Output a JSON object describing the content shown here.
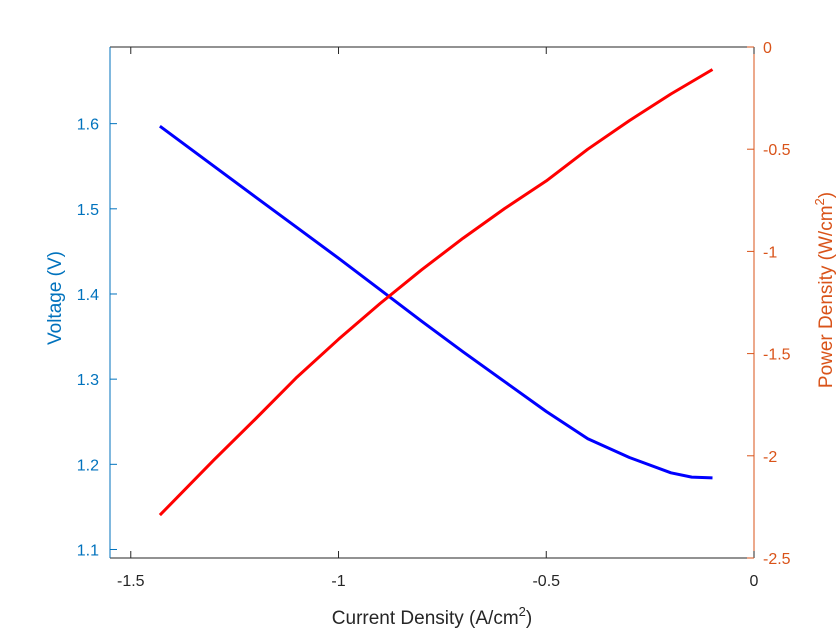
{
  "chart_data": {
    "type": "line",
    "xlabel": "Current Density (A/cm",
    "xlabel_sup": "2",
    "xlabel_close": ")",
    "ylabel_left": "Voltage (V)",
    "ylabel_right": "Power Density (W/cm",
    "ylabel_right_sup": "2",
    "ylabel_right_close": ")",
    "xlim": [
      -1.55,
      0
    ],
    "ylim_left": [
      1.09,
      1.69
    ],
    "ylim_right": [
      -2.5,
      0
    ],
    "x_ticks": [
      {
        "value": -1.5,
        "label": "-1.5"
      },
      {
        "value": -1,
        "label": "-1"
      },
      {
        "value": -0.5,
        "label": "-0.5"
      },
      {
        "value": 0,
        "label": "0"
      }
    ],
    "y_left_ticks": [
      {
        "value": 1.1,
        "label": "1.1"
      },
      {
        "value": 1.2,
        "label": "1.2"
      },
      {
        "value": 1.3,
        "label": "1.3"
      },
      {
        "value": 1.4,
        "label": "1.4"
      },
      {
        "value": 1.5,
        "label": "1.5"
      },
      {
        "value": 1.6,
        "label": "1.6"
      }
    ],
    "y_right_ticks": [
      {
        "value": 0,
        "label": "0"
      },
      {
        "value": -0.5,
        "label": "-0.5"
      },
      {
        "value": -1,
        "label": "-1"
      },
      {
        "value": -1.5,
        "label": "-1.5"
      },
      {
        "value": -2,
        "label": "-2"
      },
      {
        "value": -2.5,
        "label": "-2.5"
      }
    ],
    "grid": false,
    "series": [
      {
        "axis": "left",
        "color": "#0000ff",
        "x": [
          -1.43,
          -1.3,
          -1.2,
          -1.1,
          -1.0,
          -0.9,
          -0.8,
          -0.7,
          -0.6,
          -0.5,
          -0.4,
          -0.3,
          -0.2,
          -0.15,
          -0.1
        ],
        "y": [
          1.597,
          1.55,
          1.514,
          1.478,
          1.442,
          1.405,
          1.368,
          1.332,
          1.297,
          1.262,
          1.23,
          1.208,
          1.19,
          1.185,
          1.184
        ]
      },
      {
        "axis": "right",
        "color": "#ff0000",
        "x": [
          -1.43,
          -1.3,
          -1.2,
          -1.1,
          -1.0,
          -0.9,
          -0.8,
          -0.7,
          -0.6,
          -0.5,
          -0.4,
          -0.3,
          -0.2,
          -0.1
        ],
        "y": [
          -2.29,
          -2.02,
          -1.82,
          -1.615,
          -1.43,
          -1.255,
          -1.09,
          -0.935,
          -0.79,
          -0.655,
          -0.5,
          -0.36,
          -0.23,
          -0.11
        ]
      }
    ],
    "colors": {
      "left_axis": "#0072bd",
      "right_axis": "#d95319",
      "bottom_axis": "#262626"
    }
  }
}
